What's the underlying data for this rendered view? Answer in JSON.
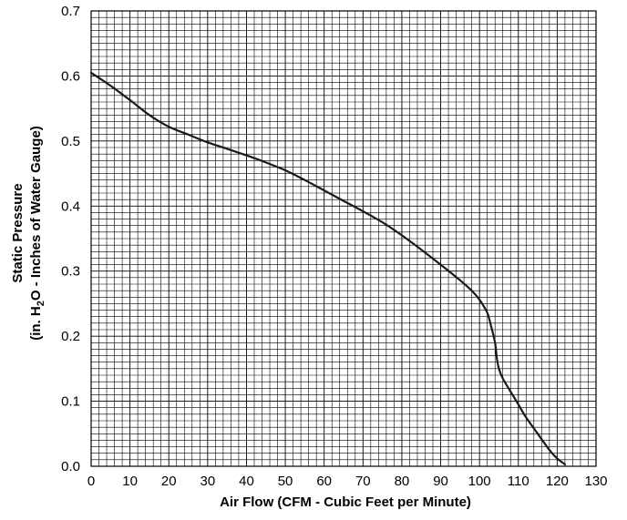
{
  "chart_data": {
    "type": "line",
    "title": "",
    "xlabel": "Air Flow (CFM - Cubic Feet per Minute)",
    "ylabel": {
      "line1": "Static Pressure",
      "line2_pre": "(in. H",
      "line2_sub2": "2",
      "line2_mid": "O - Inches of Water Gauge)"
    },
    "xlim": [
      0,
      130
    ],
    "ylim": [
      0,
      0.7
    ],
    "x_ticks": [
      "0",
      "10",
      "20",
      "30",
      "40",
      "50",
      "60",
      "70",
      "80",
      "90",
      "100",
      "110",
      "120",
      "130"
    ],
    "y_ticks": [
      "0.0",
      "0.1",
      "0.2",
      "0.3",
      "0.4",
      "0.5",
      "0.6",
      "0.7"
    ],
    "grid": true,
    "series": [
      {
        "x": [
          0,
          5,
          10,
          15,
          20,
          25,
          30,
          35,
          40,
          45,
          50,
          55,
          60,
          65,
          70,
          75,
          80,
          85,
          90,
          95,
          98,
          100,
          102,
          103,
          104,
          104.5,
          105,
          106,
          108,
          110,
          112,
          115,
          118,
          120,
          122
        ],
        "y": [
          0.605,
          0.585,
          0.563,
          0.54,
          0.522,
          0.51,
          0.498,
          0.488,
          0.478,
          0.467,
          0.455,
          0.44,
          0.424,
          0.408,
          0.392,
          0.375,
          0.355,
          0.333,
          0.31,
          0.286,
          0.27,
          0.256,
          0.236,
          0.215,
          0.19,
          0.165,
          0.15,
          0.135,
          0.115,
          0.095,
          0.075,
          0.05,
          0.025,
          0.012,
          0.003
        ]
      }
    ]
  }
}
